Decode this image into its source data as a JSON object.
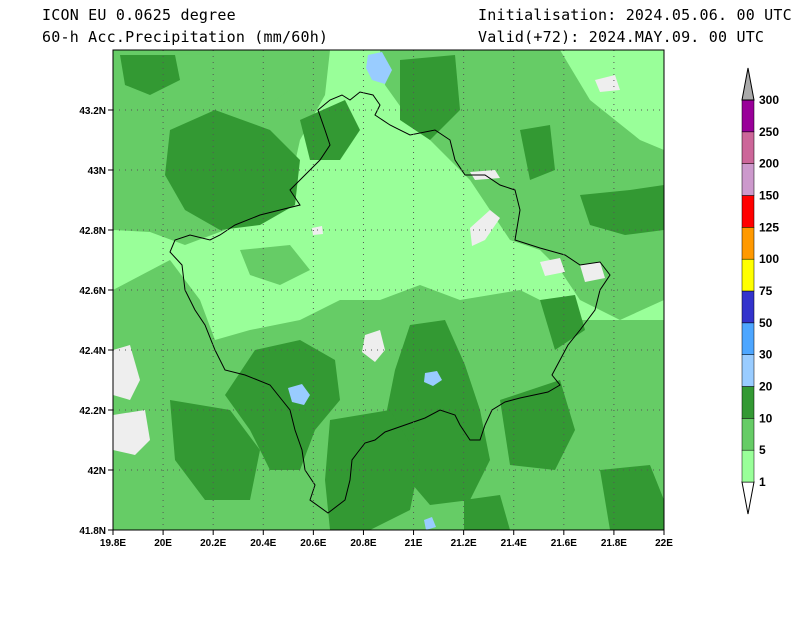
{
  "header": {
    "model": "ICON EU 0.0625 degree",
    "variable": "60-h Acc.Precipitation (mm/60h)",
    "init": "Initialisation: 2024.05.06. 00 UTC",
    "valid": "Valid(+72): 2024.MAY.09. 00 UTC"
  },
  "map": {
    "lon_ticks": [
      {
        "v": 19.8,
        "label": "19.8E"
      },
      {
        "v": 20.0,
        "label": "20E"
      },
      {
        "v": 20.2,
        "label": "20.2E"
      },
      {
        "v": 20.4,
        "label": "20.4E"
      },
      {
        "v": 20.6,
        "label": "20.6E"
      },
      {
        "v": 20.8,
        "label": "20.8E"
      },
      {
        "v": 21.0,
        "label": "21E"
      },
      {
        "v": 21.2,
        "label": "21.2E"
      },
      {
        "v": 21.4,
        "label": "21.4E"
      },
      {
        "v": 21.6,
        "label": "21.6E"
      },
      {
        "v": 21.8,
        "label": "21.8E"
      },
      {
        "v": 22.0,
        "label": "22E"
      }
    ],
    "lat_ticks": [
      {
        "v": 41.8,
        "label": "41.8N"
      },
      {
        "v": 42.0,
        "label": "42N"
      },
      {
        "v": 42.2,
        "label": "42.2N"
      },
      {
        "v": 42.4,
        "label": "42.4N"
      },
      {
        "v": 42.6,
        "label": "42.6N"
      },
      {
        "v": 42.8,
        "label": "42.8N"
      },
      {
        "v": 43.0,
        "label": "43N"
      },
      {
        "v": 43.2,
        "label": "43.2N"
      }
    ],
    "colors": {
      "c1_5": "#99ff99",
      "c5_10": "#66cc66",
      "c10_20": "#339933",
      "c20_30": "#99ccff",
      "white": "#eeeeee"
    }
  },
  "legend": {
    "items": [
      {
        "label": "1",
        "color": "#99ff99"
      },
      {
        "label": "5",
        "color": "#66cc66"
      },
      {
        "label": "10",
        "color": "#339933"
      },
      {
        "label": "20",
        "color": "#99ccff"
      },
      {
        "label": "30",
        "color": "#4da6ff"
      },
      {
        "label": "50",
        "color": "#3333cc"
      },
      {
        "label": "75",
        "color": "#ffff00"
      },
      {
        "label": "100",
        "color": "#ff9900"
      },
      {
        "label": "125",
        "color": "#ff0000"
      },
      {
        "label": "150",
        "color": "#cc99cc"
      },
      {
        "label": "200",
        "color": "#cc6699"
      },
      {
        "label": "250",
        "color": "#990099"
      },
      {
        "label": "300",
        "color": "#aaaaaa"
      }
    ]
  }
}
